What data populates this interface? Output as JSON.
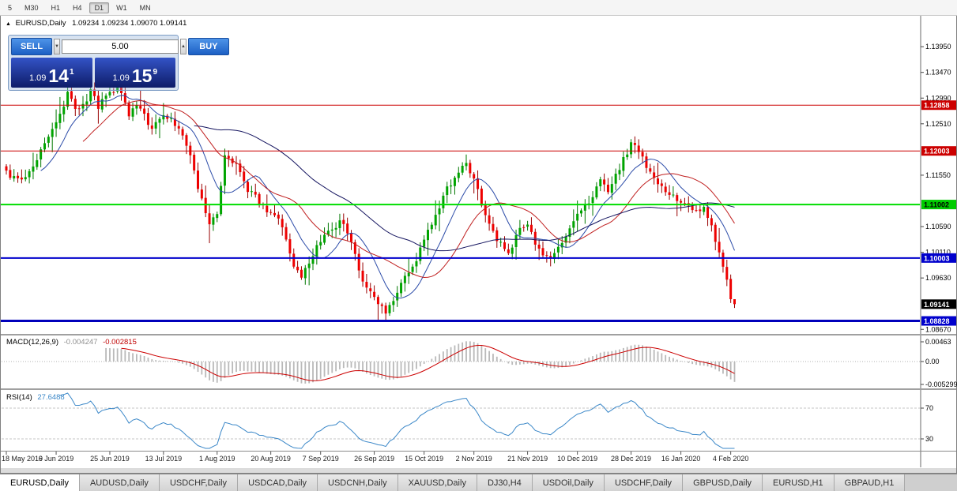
{
  "toolbar": {
    "timeframes": [
      "5",
      "M30",
      "H1",
      "H4",
      "D1",
      "W1",
      "MN"
    ],
    "active": "D1"
  },
  "chart": {
    "title_symbol": "EURUSD,Daily",
    "title_ohlc": "1.09234 1.09234 1.09070 1.09141",
    "collapse_icon": "▲"
  },
  "one_click": {
    "sell_label": "SELL",
    "buy_label": "BUY",
    "volume": "5.00",
    "spin_up_icon": "▲",
    "spin_down_icon": "▼",
    "sell_price": {
      "head": "1.09",
      "big": "14",
      "sup": "1"
    },
    "buy_price": {
      "head": "1.09",
      "big": "15",
      "sup": "9"
    }
  },
  "price_axis": {
    "ticks": [
      "1.13950",
      "1.13470",
      "1.12990",
      "1.12510",
      "1.11550",
      "1.10590",
      "1.10110",
      "1.09630",
      "1.08670"
    ],
    "labels": [
      {
        "text": "1.12858",
        "price": 1.12858,
        "bg": "#CC0000",
        "fg": "#FFFFFF"
      },
      {
        "text": "1.12003",
        "price": 1.12003,
        "bg": "#CC0000",
        "fg": "#FFFFFF"
      },
      {
        "text": "1.11002",
        "price": 1.11002,
        "bg": "#00CC00",
        "fg": "#000000"
      },
      {
        "text": "1.10003",
        "price": 1.10003,
        "bg": "#0000CC",
        "fg": "#FFFFFF"
      },
      {
        "text": "1.09141",
        "price": 1.09141,
        "bg": "#000000",
        "fg": "#FFFFFF"
      },
      {
        "text": "1.08828",
        "price": 1.08828,
        "bg": "#0000CC",
        "fg": "#FFFFFF"
      }
    ]
  },
  "chart_data": {
    "type": "candlestick",
    "title": "EURUSD,Daily",
    "last_ohlc": {
      "open": 1.09234,
      "high": 1.09234,
      "low": 1.0907,
      "close": 1.09141
    },
    "y_range": [
      1.086,
      1.14424
    ],
    "candle_count": 191,
    "price_levels": [
      {
        "price": 1.12858,
        "color": "#CC0000",
        "width": 1
      },
      {
        "price": 1.12003,
        "color": "#CC0000",
        "width": 1
      },
      {
        "price": 1.11002,
        "color": "#00DD00",
        "width": 2
      },
      {
        "price": 1.10003,
        "color": "#0000CC",
        "width": 2
      },
      {
        "price": 1.08828,
        "color": "#0000BB",
        "width": 3
      }
    ],
    "close_anchors": [
      [
        0,
        1.116
      ],
      [
        4,
        1.1145
      ],
      [
        8,
        1.1185
      ],
      [
        13,
        1.1255
      ],
      [
        16,
        1.1305
      ],
      [
        19,
        1.1275
      ],
      [
        22,
        1.131
      ],
      [
        24,
        1.1285
      ],
      [
        27,
        1.1305
      ],
      [
        29,
        1.1318
      ],
      [
        32,
        1.127
      ],
      [
        35,
        1.1285
      ],
      [
        38,
        1.124
      ],
      [
        41,
        1.1272
      ],
      [
        44,
        1.125
      ],
      [
        47,
        1.1215
      ],
      [
        50,
        1.1135
      ],
      [
        53,
        1.1058
      ],
      [
        55,
        1.1085
      ],
      [
        57,
        1.1195
      ],
      [
        60,
        1.1175
      ],
      [
        63,
        1.113
      ],
      [
        66,
        1.1105
      ],
      [
        69,
        1.1085
      ],
      [
        72,
        1.106
      ],
      [
        75,
        1.099
      ],
      [
        77,
        1.0968
      ],
      [
        80,
        1.1005
      ],
      [
        82,
        1.1035
      ],
      [
        85,
        1.1055
      ],
      [
        88,
        1.107
      ],
      [
        91,
        1.1005
      ],
      [
        93,
        1.0955
      ],
      [
        96,
        1.0925
      ],
      [
        99,
        1.0895
      ],
      [
        102,
        1.0935
      ],
      [
        105,
        1.0975
      ],
      [
        107,
        1.0995
      ],
      [
        109,
        1.1035
      ],
      [
        112,
        1.1075
      ],
      [
        115,
        1.113
      ],
      [
        118,
        1.1165
      ],
      [
        120,
        1.1175
      ],
      [
        122,
        1.115
      ],
      [
        125,
        1.1075
      ],
      [
        128,
        1.1035
      ],
      [
        131,
        1.101
      ],
      [
        134,
        1.105
      ],
      [
        136,
        1.1065
      ],
      [
        139,
        1.1015
      ],
      [
        142,
        1.0995
      ],
      [
        145,
        1.1025
      ],
      [
        147,
        1.106
      ],
      [
        149,
        1.1085
      ],
      [
        152,
        1.1105
      ],
      [
        155,
        1.1145
      ],
      [
        157,
        1.112
      ],
      [
        160,
        1.117
      ],
      [
        163,
        1.1215
      ],
      [
        165,
        1.12
      ],
      [
        168,
        1.116
      ],
      [
        171,
        1.113
      ],
      [
        174,
        1.1115
      ],
      [
        176,
        1.111
      ],
      [
        179,
        1.109
      ],
      [
        182,
        1.1095
      ],
      [
        184,
        1.106
      ],
      [
        186,
        1.1005
      ],
      [
        188,
        1.096
      ],
      [
        189,
        1.09234
      ],
      [
        190,
        1.09141
      ]
    ],
    "moving_averages": [
      {
        "period": 10,
        "color": "#2B4BA8"
      },
      {
        "period": 21,
        "color": "#C02020"
      },
      {
        "period": 50,
        "color": "#14145F"
      }
    ],
    "x_ticks": [
      {
        "i": 0,
        "label": "18 May 2019"
      },
      {
        "i": 13,
        "label": "6 Jun 2019"
      },
      {
        "i": 27,
        "label": "25 Jun 2019"
      },
      {
        "i": 41,
        "label": "13 Jul 2019"
      },
      {
        "i": 55,
        "label": "1 Aug 2019"
      },
      {
        "i": 69,
        "label": "20 Aug 2019"
      },
      {
        "i": 82,
        "label": "7 Sep 2019"
      },
      {
        "i": 96,
        "label": "26 Sep 2019"
      },
      {
        "i": 109,
        "label": "15 Oct 2019"
      },
      {
        "i": 122,
        "label": "2 Nov 2019"
      },
      {
        "i": 136,
        "label": "21 Nov 2019"
      },
      {
        "i": 149,
        "label": "10 Dec 2019"
      },
      {
        "i": 163,
        "label": "28 Dec 2019"
      },
      {
        "i": 176,
        "label": "16 Jan 2020"
      },
      {
        "i": 189,
        "label": "4 Feb 2020"
      }
    ]
  },
  "macd_panel": {
    "name": "MACD(12,26,9)",
    "macd_value": "-0.004247",
    "signal_value": "-0.002815",
    "axis_labels": [
      "0.00463",
      "0.00",
      "-0.005299"
    ],
    "histogram_color": "#B9B9B9",
    "signal_color": "#CC0000"
  },
  "rsi_panel": {
    "name": "RSI(14)",
    "value": "27.6488",
    "axis_labels": [
      "70",
      "30"
    ],
    "levels": [
      70,
      30
    ],
    "line_color": "#3A87C8"
  },
  "tabs": [
    "EURUSD,Daily",
    "AUDUSD,Daily",
    "USDCHF,Daily",
    "USDCAD,Daily",
    "USDCNH,Daily",
    "XAUUSD,Daily",
    "DJ30,H4",
    "USDOil,Daily",
    "USDCHF,Daily",
    "GBPUSD,Daily",
    "EURUSD,H1",
    "GBPAUD,H1"
  ],
  "active_tab": "EURUSD,Daily"
}
